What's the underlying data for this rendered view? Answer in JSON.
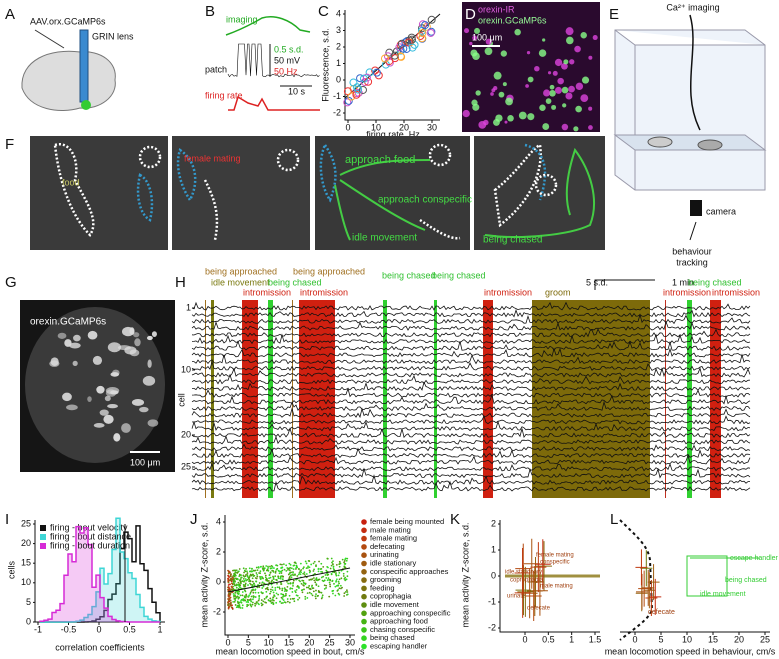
{
  "panel_labels": [
    "A",
    "B",
    "C",
    "D",
    "E",
    "F",
    "G",
    "H",
    "I",
    "J",
    "K",
    "L"
  ],
  "A": {
    "virus": "AAV.orx.GCaMP6s",
    "lens": "GRIN lens"
  },
  "B": {
    "imaging": "imaging",
    "patch": "patch",
    "firing_rate": "firing rate",
    "scale_sd": "0.5 s.d.",
    "scale_mv": "50 mV",
    "scale_hz": "50 Hz",
    "scale_time": "10 s"
  },
  "C": {
    "y_label": "Fluorescence, s.d.",
    "x_label": "firing rate, Hz",
    "y_ticks": [
      4,
      3,
      2,
      1,
      0,
      -1,
      -2
    ],
    "x_ticks": [
      0,
      10,
      20,
      30
    ]
  },
  "D": {
    "stain": "orexin-IR",
    "sensor": "orexin.GCaMP6s",
    "scale": "100 μm"
  },
  "E": {
    "imaging": "Ca²⁺ imaging",
    "camera": "camera",
    "tracking": [
      "behaviour",
      "tracking"
    ]
  },
  "F": {
    "labels": [
      "food",
      "female mating",
      "approach food",
      "approach conspecific",
      "idle movement",
      "being chased"
    ]
  },
  "G": {
    "sensor": "orexin.GCaMP6s",
    "scale": "100 μm"
  },
  "H": {
    "events": [
      "being approached",
      "idle movement",
      "intromission",
      "being chased",
      "being approached",
      "intromission",
      "being chased",
      "being chased",
      "intromission",
      "groom",
      "intromission",
      "being chased",
      "intromission"
    ],
    "scale_sd": "5 s.d.",
    "scale_time": "1 min",
    "y_label": "cell",
    "y_ticks": [
      1,
      10,
      20,
      25
    ]
  },
  "I": {
    "legend": [
      {
        "name": "firing - bout velocity",
        "color": "#111111"
      },
      {
        "name": "firing - bout distance",
        "color": "#3fd6d6"
      },
      {
        "name": "firing - bout duration",
        "color": "#d62bd6"
      }
    ],
    "y_label": "cells",
    "y_ticks": [
      0,
      5,
      10,
      15,
      20,
      25
    ],
    "x_ticks": [
      -1,
      -0.5,
      0,
      0.5,
      1
    ],
    "x_label": "correlation coefficients"
  },
  "J": {
    "y_label": "mean activity Z-score, s.d.",
    "y_ticks": [
      4,
      2,
      0,
      -2
    ],
    "x_ticks": [
      0,
      5,
      10,
      15,
      20,
      25,
      30
    ],
    "x_label": "mean locomotion speed in bout, cm/s",
    "legend": [
      {
        "name": "female being mounted",
        "color": "#c8200f"
      },
      {
        "name": "male mating",
        "color": "#c42c10"
      },
      {
        "name": "female mating",
        "color": "#c03a10"
      },
      {
        "name": "defecating",
        "color": "#b44a10"
      },
      {
        "name": "urinating",
        "color": "#a85210"
      },
      {
        "name": "idle stationary",
        "color": "#a05c10"
      },
      {
        "name": "conspecific approaches",
        "color": "#946410"
      },
      {
        "name": "grooming",
        "color": "#866c10"
      },
      {
        "name": "feeding",
        "color": "#7c7410"
      },
      {
        "name": "coprophagia",
        "color": "#707a10"
      },
      {
        "name": "idle movement",
        "color": "#5e8e10"
      },
      {
        "name": "approaching conspecific",
        "color": "#52a210"
      },
      {
        "name": "approaching food",
        "color": "#46b414"
      },
      {
        "name": "chasing conspecific",
        "color": "#3cc41a"
      },
      {
        "name": "being chased",
        "color": "#34d420"
      },
      {
        "name": "escaping handler",
        "color": "#2ee22a"
      }
    ]
  },
  "K": {
    "y_label": "mean activity Z-score, s.d.",
    "y_ticks": [
      2,
      1,
      0,
      -1,
      -2
    ],
    "x_ticks": [
      0,
      0.5,
      1,
      1.5
    ],
    "labels": [
      "female mating",
      "conspecific",
      "idle stationary",
      "coprophagia",
      "male mating",
      "urinate",
      "defecate"
    ]
  },
  "L": {
    "x_ticks": [
      0,
      5,
      10,
      15,
      20,
      25
    ],
    "x_label": "mean locomotion speed in behaviour, cm/s",
    "labels": [
      "escape handler",
      "being chased",
      "idle movement",
      "defecate"
    ]
  }
}
